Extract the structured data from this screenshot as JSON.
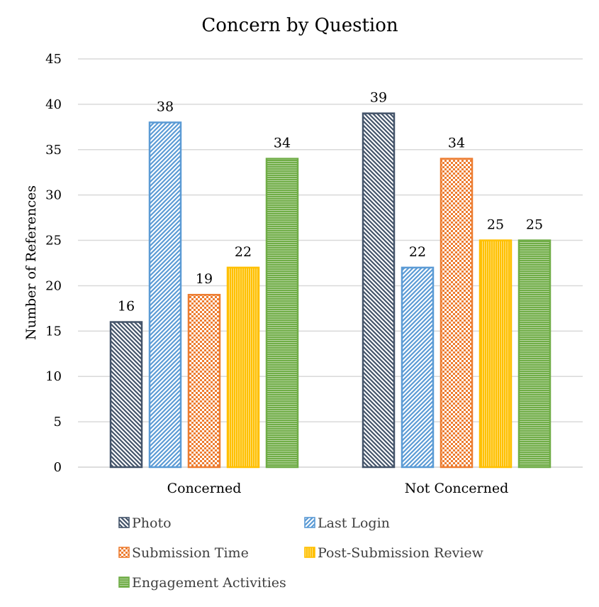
{
  "chart_data": {
    "type": "bar",
    "title": "Concern by Question",
    "xlabel": "",
    "ylabel": "Number of References",
    "ylim": [
      0,
      45
    ],
    "yticks": [
      0,
      5,
      10,
      15,
      20,
      25,
      30,
      35,
      40,
      45
    ],
    "categories": [
      "Concerned",
      "Not Concerned"
    ],
    "series": [
      {
        "name": "Photo",
        "values": [
          16,
          39
        ],
        "color": "#44546a",
        "pattern": "diag-back"
      },
      {
        "name": "Last Login",
        "values": [
          38,
          22
        ],
        "color": "#5b9bd5",
        "pattern": "diag-fwd"
      },
      {
        "name": "Submission Time",
        "values": [
          19,
          34
        ],
        "color": "#ed7d31",
        "pattern": "checker"
      },
      {
        "name": "Post-Submission Review",
        "values": [
          22,
          25
        ],
        "color": "#ffc000",
        "pattern": "vertical"
      },
      {
        "name": "Engagement Activities",
        "values": [
          34,
          25
        ],
        "color": "#70ad47",
        "pattern": "horizontal"
      }
    ],
    "grid": true,
    "legend": "bottom"
  }
}
